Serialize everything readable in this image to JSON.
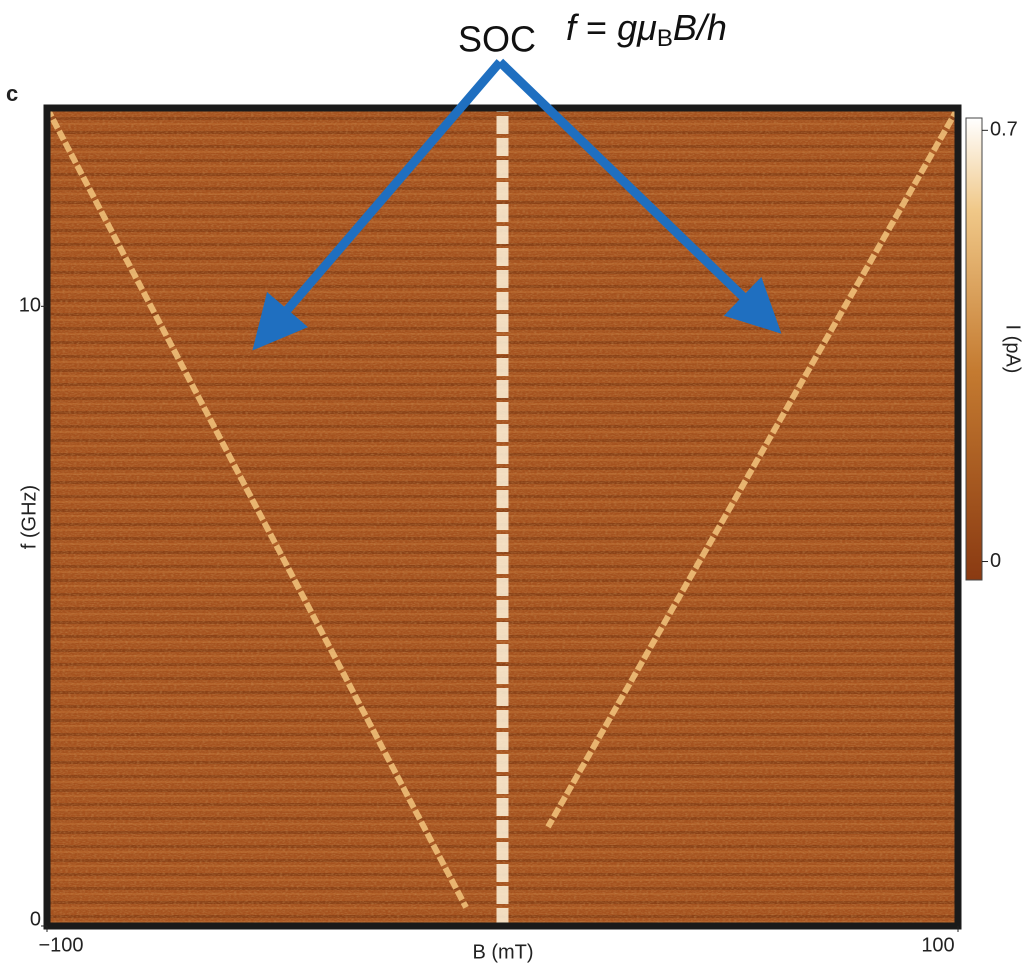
{
  "chart_data": {
    "type": "heatmap",
    "panel_label": "c",
    "annotation": "SOC",
    "formula": {
      "lhs": "f",
      "op": "=",
      "rhs": "gμ",
      "sub": "B",
      "tail": "B/h"
    },
    "x_label": "B (mT)",
    "y_label": "f (GHz)",
    "colorbar_label": "I (pA)",
    "xlim": [
      -100,
      100
    ],
    "xticks": [
      {
        "value": -100,
        "label": "−100"
      },
      100
    ],
    "ylim": [
      0,
      13.2
    ],
    "yticks": [
      0,
      10
    ],
    "clim": [
      -0.03,
      0.72
    ],
    "cticks": [
      0,
      0.7
    ],
    "series": [
      {
        "color": "#f3c47c",
        "x": [
          -100,
          -8
        ],
        "values": [
          13.2,
          0.3
        ]
      },
      {
        "color": "#f3c47c",
        "x": [
          100,
          10
        ],
        "values": [
          13.2,
          1.6
        ]
      },
      {
        "color": "#fff4dc",
        "x": [
          0,
          0
        ],
        "values": [
          0,
          13.2
        ]
      }
    ]
  }
}
